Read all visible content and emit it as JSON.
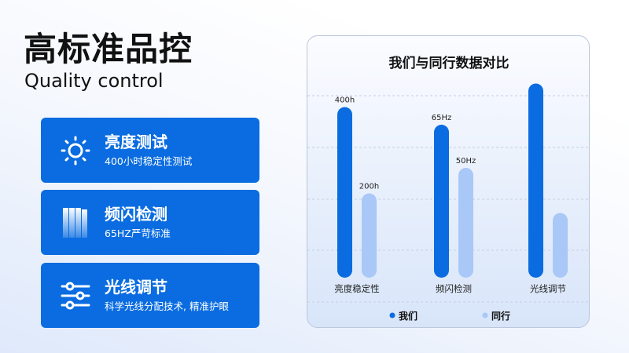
{
  "header": {
    "title": "高标准品控",
    "subtitle": "Quality control"
  },
  "features": [
    {
      "icon": "sun-icon",
      "title": "亮度测试",
      "desc": "400小时稳定性测试"
    },
    {
      "icon": "flicker-bars-icon",
      "title": "频闪检测",
      "desc": "65HZ严苛标准"
    },
    {
      "icon": "sliders-icon",
      "title": "光线调节",
      "desc": "科学光线分配技术, 精准护眼"
    }
  ],
  "colors": {
    "primary": "#0a6ce0",
    "peer": "#a9c8f7"
  },
  "chart_data": {
    "type": "bar",
    "title": "我们与同行数据对比",
    "categories": [
      "亮度稳定性",
      "频闪检测",
      "光线调节"
    ],
    "grid": true,
    "legend": "bottom",
    "series": [
      {
        "name": "我们",
        "color": "#0a6ce0",
        "values": [
          400,
          65,
          null
        ],
        "labels": [
          "400h",
          "65Hz",
          ""
        ],
        "levels": [
          0.87,
          0.78,
          0.99
        ]
      },
      {
        "name": "同行",
        "color": "#a9c8f7",
        "values": [
          200,
          50,
          null
        ],
        "labels": [
          "200h",
          "50Hz",
          ""
        ],
        "levels": [
          0.43,
          0.56,
          0.33
        ]
      }
    ]
  }
}
